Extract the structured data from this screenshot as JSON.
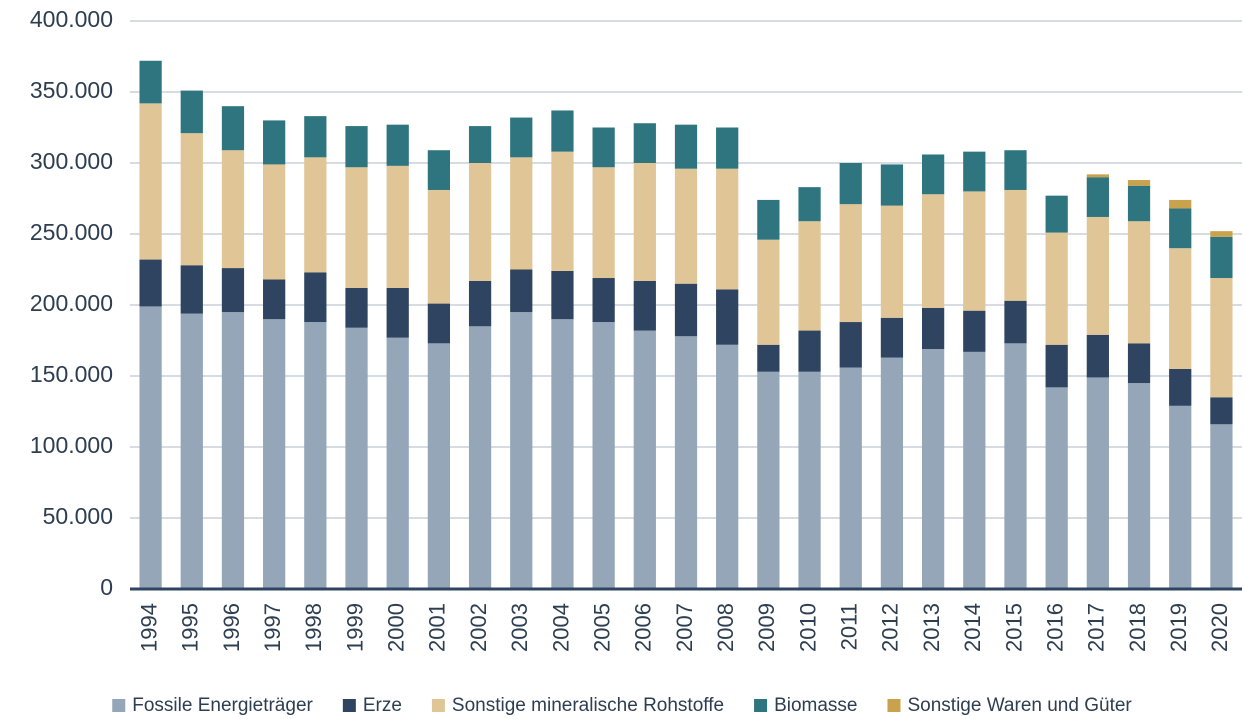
{
  "chart_data": {
    "type": "stacked-bar",
    "categories": [
      "1994",
      "1995",
      "1996",
      "1997",
      "1998",
      "1999",
      "2000",
      "2001",
      "2002",
      "2003",
      "2004",
      "2005",
      "2006",
      "2007",
      "2008",
      "2009",
      "2010",
      "2011",
      "2012",
      "2013",
      "2014",
      "2015",
      "2016",
      "2017",
      "2018",
      "2019",
      "2020"
    ],
    "series": [
      {
        "name": "Fossile Energieträger",
        "color": "#94a6b8",
        "values": [
          199000,
          194000,
          195000,
          190000,
          188000,
          184000,
          177000,
          173000,
          185000,
          195000,
          190000,
          188000,
          182000,
          178000,
          172000,
          153000,
          153000,
          156000,
          163000,
          169000,
          167000,
          173000,
          142000,
          149000,
          145000,
          129000,
          116000
        ]
      },
      {
        "name": "Erze",
        "color": "#2e4460",
        "values": [
          33000,
          34000,
          31000,
          28000,
          35000,
          28000,
          35000,
          28000,
          32000,
          30000,
          34000,
          31000,
          35000,
          37000,
          39000,
          19000,
          29000,
          32000,
          28000,
          29000,
          29000,
          30000,
          30000,
          30000,
          28000,
          26000,
          19000
        ]
      },
      {
        "name": "Sonstige mineralische Rohstoffe",
        "color": "#e0c596",
        "values": [
          110000,
          93000,
          83000,
          81000,
          81000,
          85000,
          86000,
          80000,
          83000,
          79000,
          84000,
          78000,
          83000,
          81000,
          85000,
          74000,
          77000,
          83000,
          79000,
          80000,
          84000,
          78000,
          79000,
          83000,
          86000,
          85000,
          84000
        ]
      },
      {
        "name": "Biomasse",
        "color": "#2f7580",
        "values": [
          30000,
          30000,
          31000,
          31000,
          29000,
          29000,
          29000,
          28000,
          26000,
          28000,
          29000,
          28000,
          28000,
          31000,
          29000,
          28000,
          24000,
          29000,
          29000,
          28000,
          28000,
          28000,
          26000,
          28000,
          25000,
          28000,
          29000
        ]
      },
      {
        "name": "Sonstige Waren und Güter",
        "color": "#c9a24d",
        "values": [
          0,
          0,
          0,
          0,
          0,
          0,
          0,
          0,
          0,
          0,
          0,
          0,
          0,
          0,
          0,
          0,
          0,
          0,
          0,
          0,
          0,
          0,
          0,
          2000,
          4000,
          6000,
          4000
        ]
      }
    ],
    "ylim": [
      0,
      400000
    ],
    "yticks": [
      0,
      {
        "value": 50000,
        "label": "50.000"
      },
      {
        "value": 100000,
        "label": "100.000"
      },
      {
        "value": 150000,
        "label": "150.000"
      },
      {
        "value": 200000,
        "label": "200.000"
      },
      {
        "value": 250000,
        "label": "250.000"
      },
      {
        "value": 300000,
        "label": "300.000"
      },
      {
        "value": 350000,
        "label": "350.000"
      },
      {
        "value": 400000,
        "label": "400.000"
      }
    ],
    "grid": true
  }
}
